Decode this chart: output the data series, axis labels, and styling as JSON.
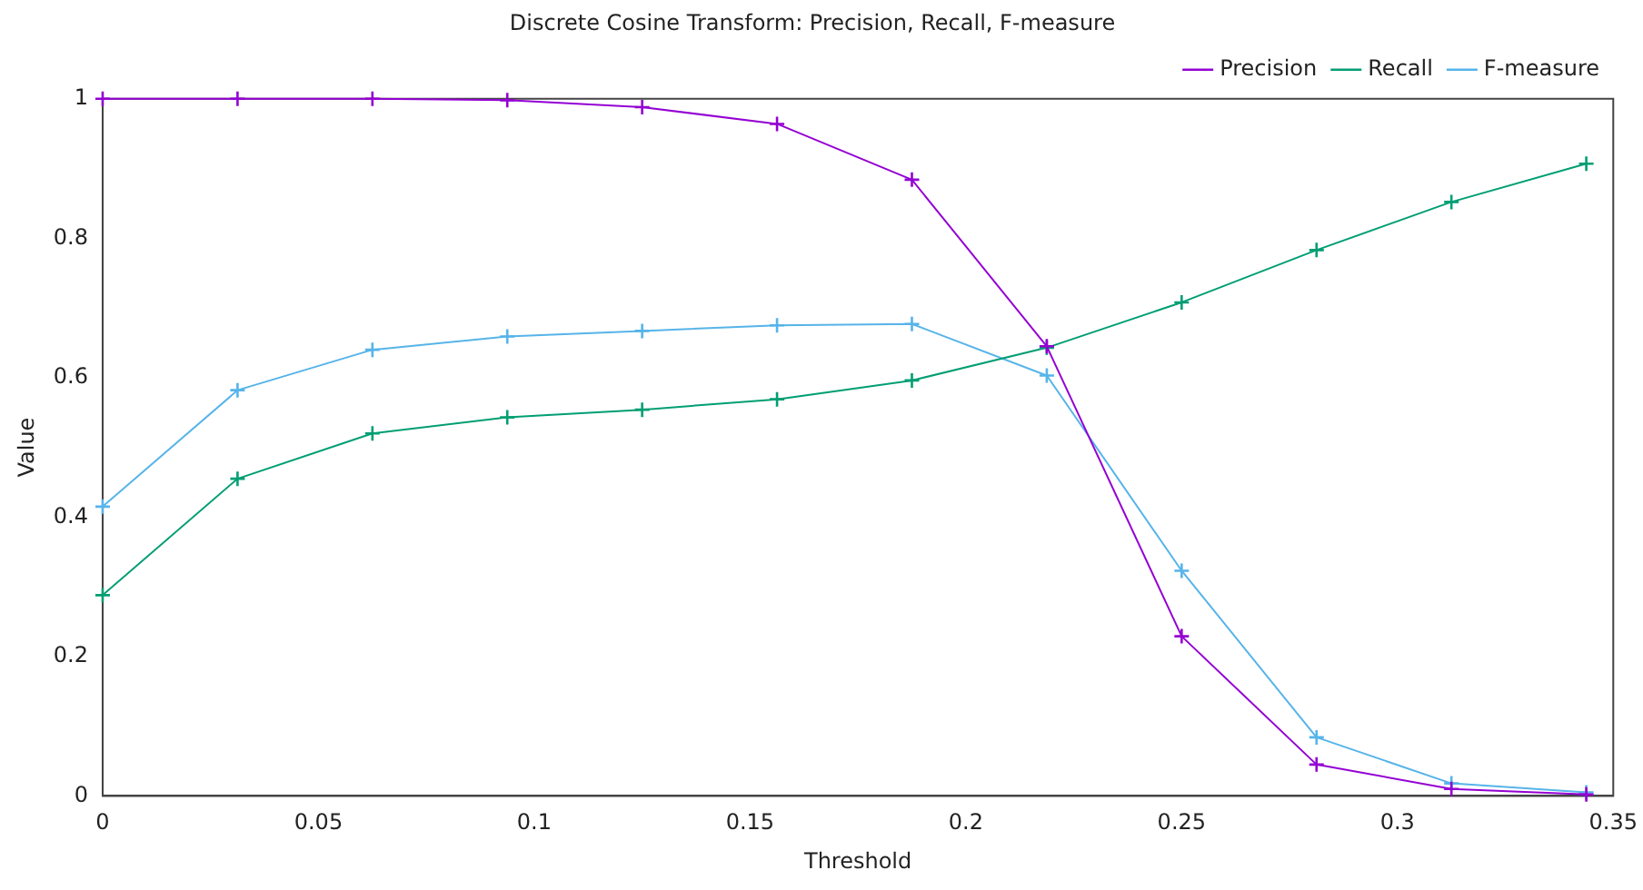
{
  "chart_data": {
    "type": "line",
    "title": "Discrete Cosine Transform: Precision, Recall, F-measure",
    "xlabel": "Threshold",
    "ylabel": "Value",
    "x": [
      0,
      0.03125,
      0.0625,
      0.09375,
      0.125,
      0.15625,
      0.1875,
      0.21875,
      0.25,
      0.28125,
      0.3125,
      0.34375
    ],
    "series": [
      {
        "name": "Precision",
        "color": "#9400d3",
        "marker": "cross",
        "values": [
          1,
          1,
          1,
          0.998,
          0.988,
          0.964,
          0.884,
          0.645,
          0.229,
          0.045,
          0.01,
          0.002
        ]
      },
      {
        "name": "Recall",
        "color": "#009e73",
        "marker": "cross",
        "values": [
          0.288,
          0.455,
          0.52,
          0.543,
          0.554,
          0.569,
          0.596,
          0.643,
          0.708,
          0.783,
          0.852,
          0.907
        ]
      },
      {
        "name": "F-measure",
        "color": "#56b4e9",
        "marker": "cross",
        "values": [
          0.415,
          0.582,
          0.64,
          0.659,
          0.667,
          0.675,
          0.677,
          0.603,
          0.323,
          0.084,
          0.018,
          0.005
        ]
      }
    ],
    "xlim": [
      0,
      0.35
    ],
    "xticks": [
      0,
      0.05,
      0.1,
      0.15,
      0.2,
      0.25,
      0.3,
      0.35
    ],
    "ylim": [
      0,
      1
    ],
    "yticks": [
      0,
      0.2,
      0.4,
      0.6,
      0.8,
      1
    ],
    "grid": false,
    "legend": "top right",
    "line_style": "solid"
  }
}
